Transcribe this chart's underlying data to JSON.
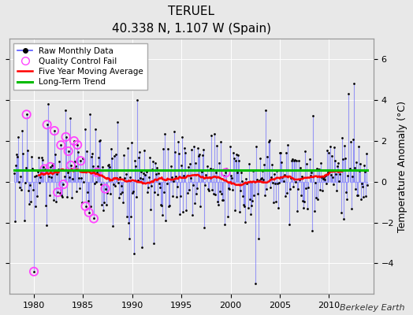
{
  "title": "TERUEL",
  "subtitle": "40.338 N, 1.107 W (Spain)",
  "ylabel": "Temperature Anomaly (°C)",
  "attribution": "Berkeley Earth",
  "xlim": [
    1977.5,
    2014.5
  ],
  "ylim": [
    -5.5,
    7.0
  ],
  "yticks": [
    -4,
    -2,
    0,
    2,
    4,
    6
  ],
  "xticks": [
    1980,
    1985,
    1990,
    1995,
    2000,
    2005,
    2010
  ],
  "background_color": "#e8e8e8",
  "plot_bg_color": "#e8e8e8",
  "grid_color": "#ffffff",
  "raw_line_color": "#5555ff",
  "raw_dot_color": "#000000",
  "ma_color": "#ff0000",
  "trend_color": "#00bb00",
  "qc_color": "#ff44ff",
  "long_term_trend_value": 0.58,
  "stem_alpha": 0.55,
  "stem_linewidth": 0.8
}
